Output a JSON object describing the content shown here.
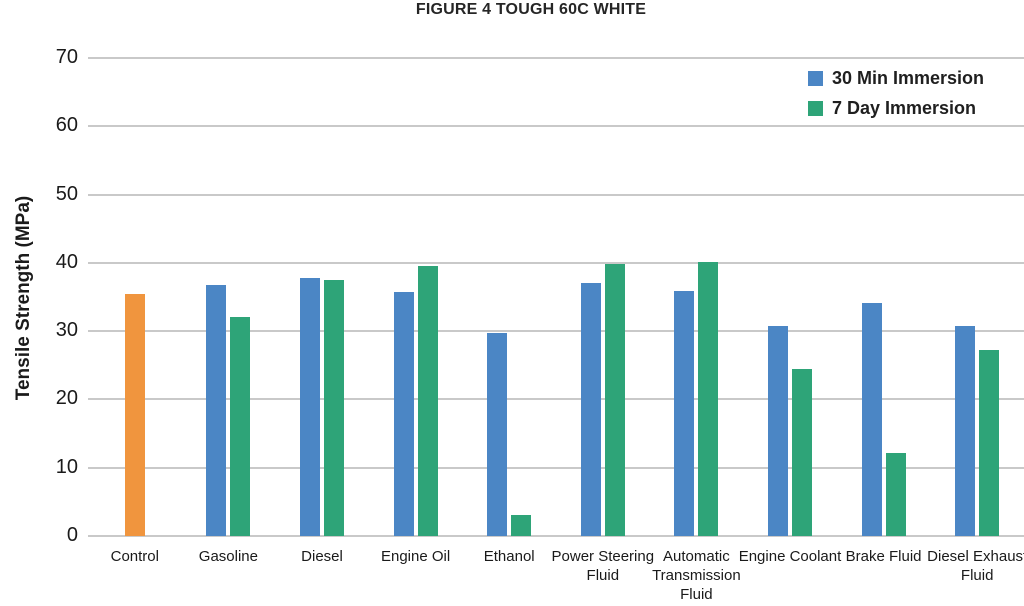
{
  "chart_data": {
    "type": "bar",
    "title": "FIGURE 4 TOUGH 60C WHITE",
    "xlabel": "",
    "ylabel": "Tensile Strength (MPa)",
    "ylim": [
      0,
      70
    ],
    "yticks": [
      0,
      10,
      20,
      30,
      40,
      50,
      60,
      70
    ],
    "grid": true,
    "legend_position": "top-right",
    "legend_entries": [
      "30 Min Immersion",
      "7 Day Immersion"
    ],
    "categories": [
      "Control",
      "Gasoline",
      "Diesel",
      "Engine Oil",
      "Ethanol",
      "Power Steering Fluid",
      "Automatic Transmission Fluid",
      "Engine Coolant",
      "Brake Fluid",
      "Diesel Exhaust Fluid"
    ],
    "series": [
      {
        "name": "Control",
        "color": "#F0953E",
        "in_legend": false,
        "values": [
          35.4,
          null,
          null,
          null,
          null,
          null,
          null,
          null,
          null,
          null
        ]
      },
      {
        "name": "30 Min Immersion",
        "color": "#4B86C5",
        "in_legend": true,
        "values": [
          null,
          36.7,
          37.8,
          35.7,
          29.7,
          37.0,
          35.9,
          30.7,
          34.1,
          30.7
        ]
      },
      {
        "name": "7 Day Immersion",
        "color": "#2EA478",
        "in_legend": true,
        "values": [
          null,
          32.0,
          37.5,
          39.6,
          3.1,
          39.8,
          40.1,
          24.5,
          12.2,
          27.2
        ]
      }
    ],
    "colors": {
      "control_bar": "#F0953E",
      "immersion_30min_bar": "#4B86C5",
      "immersion_7day_bar": "#2EA478",
      "gridline": "#c9c9c9",
      "text": "#1a1a1a"
    }
  }
}
